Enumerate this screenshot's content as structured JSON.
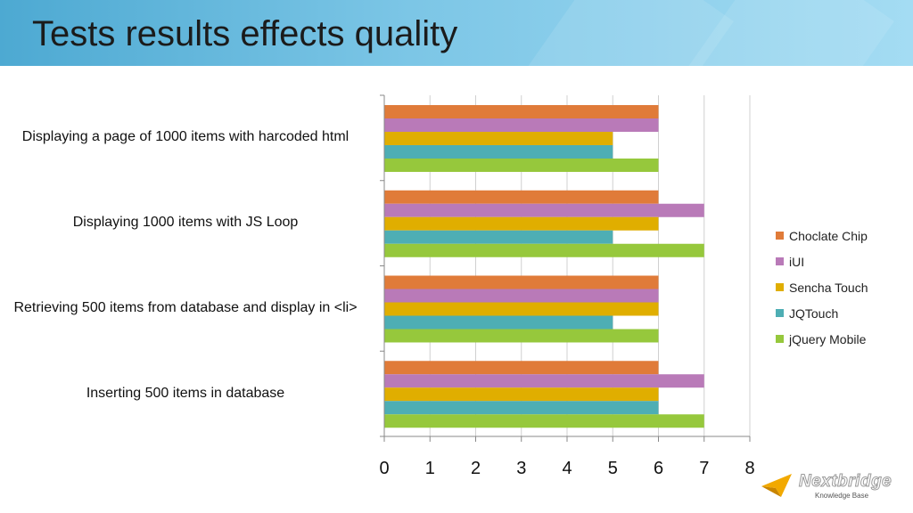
{
  "slide": {
    "title": "Tests results effects quality"
  },
  "chart_data": {
    "type": "bar",
    "orientation": "horizontal",
    "categories": [
      "Displaying a page of 1000 items with harcoded html",
      "Displaying 1000 items with JS Loop",
      "Retrieving 500 items from database and display in <li>",
      "Inserting 500 items in database"
    ],
    "series": [
      {
        "name": "Choclate Chip",
        "color": "#e07b39",
        "values": [
          6,
          6,
          6,
          6
        ]
      },
      {
        "name": "iUI",
        "color": "#b97ab8",
        "values": [
          6,
          7,
          6,
          7
        ]
      },
      {
        "name": "Sencha Touch",
        "color": "#e0ae00",
        "values": [
          5,
          6,
          6,
          6
        ]
      },
      {
        "name": "JQTouch",
        "color": "#4eaeb4",
        "values": [
          5,
          5,
          5,
          6
        ]
      },
      {
        "name": "jQuery Mobile",
        "color": "#96c83c",
        "values": [
          6,
          7,
          6,
          7
        ]
      }
    ],
    "xlim": [
      0,
      8
    ],
    "x_ticks": [
      "0",
      "1",
      "2",
      "3",
      "4",
      "5",
      "6",
      "7",
      "8"
    ],
    "grid": true,
    "legend_position": "right"
  },
  "logo": {
    "name": "Nextbridge",
    "tagline": "Knowledge Base"
  }
}
